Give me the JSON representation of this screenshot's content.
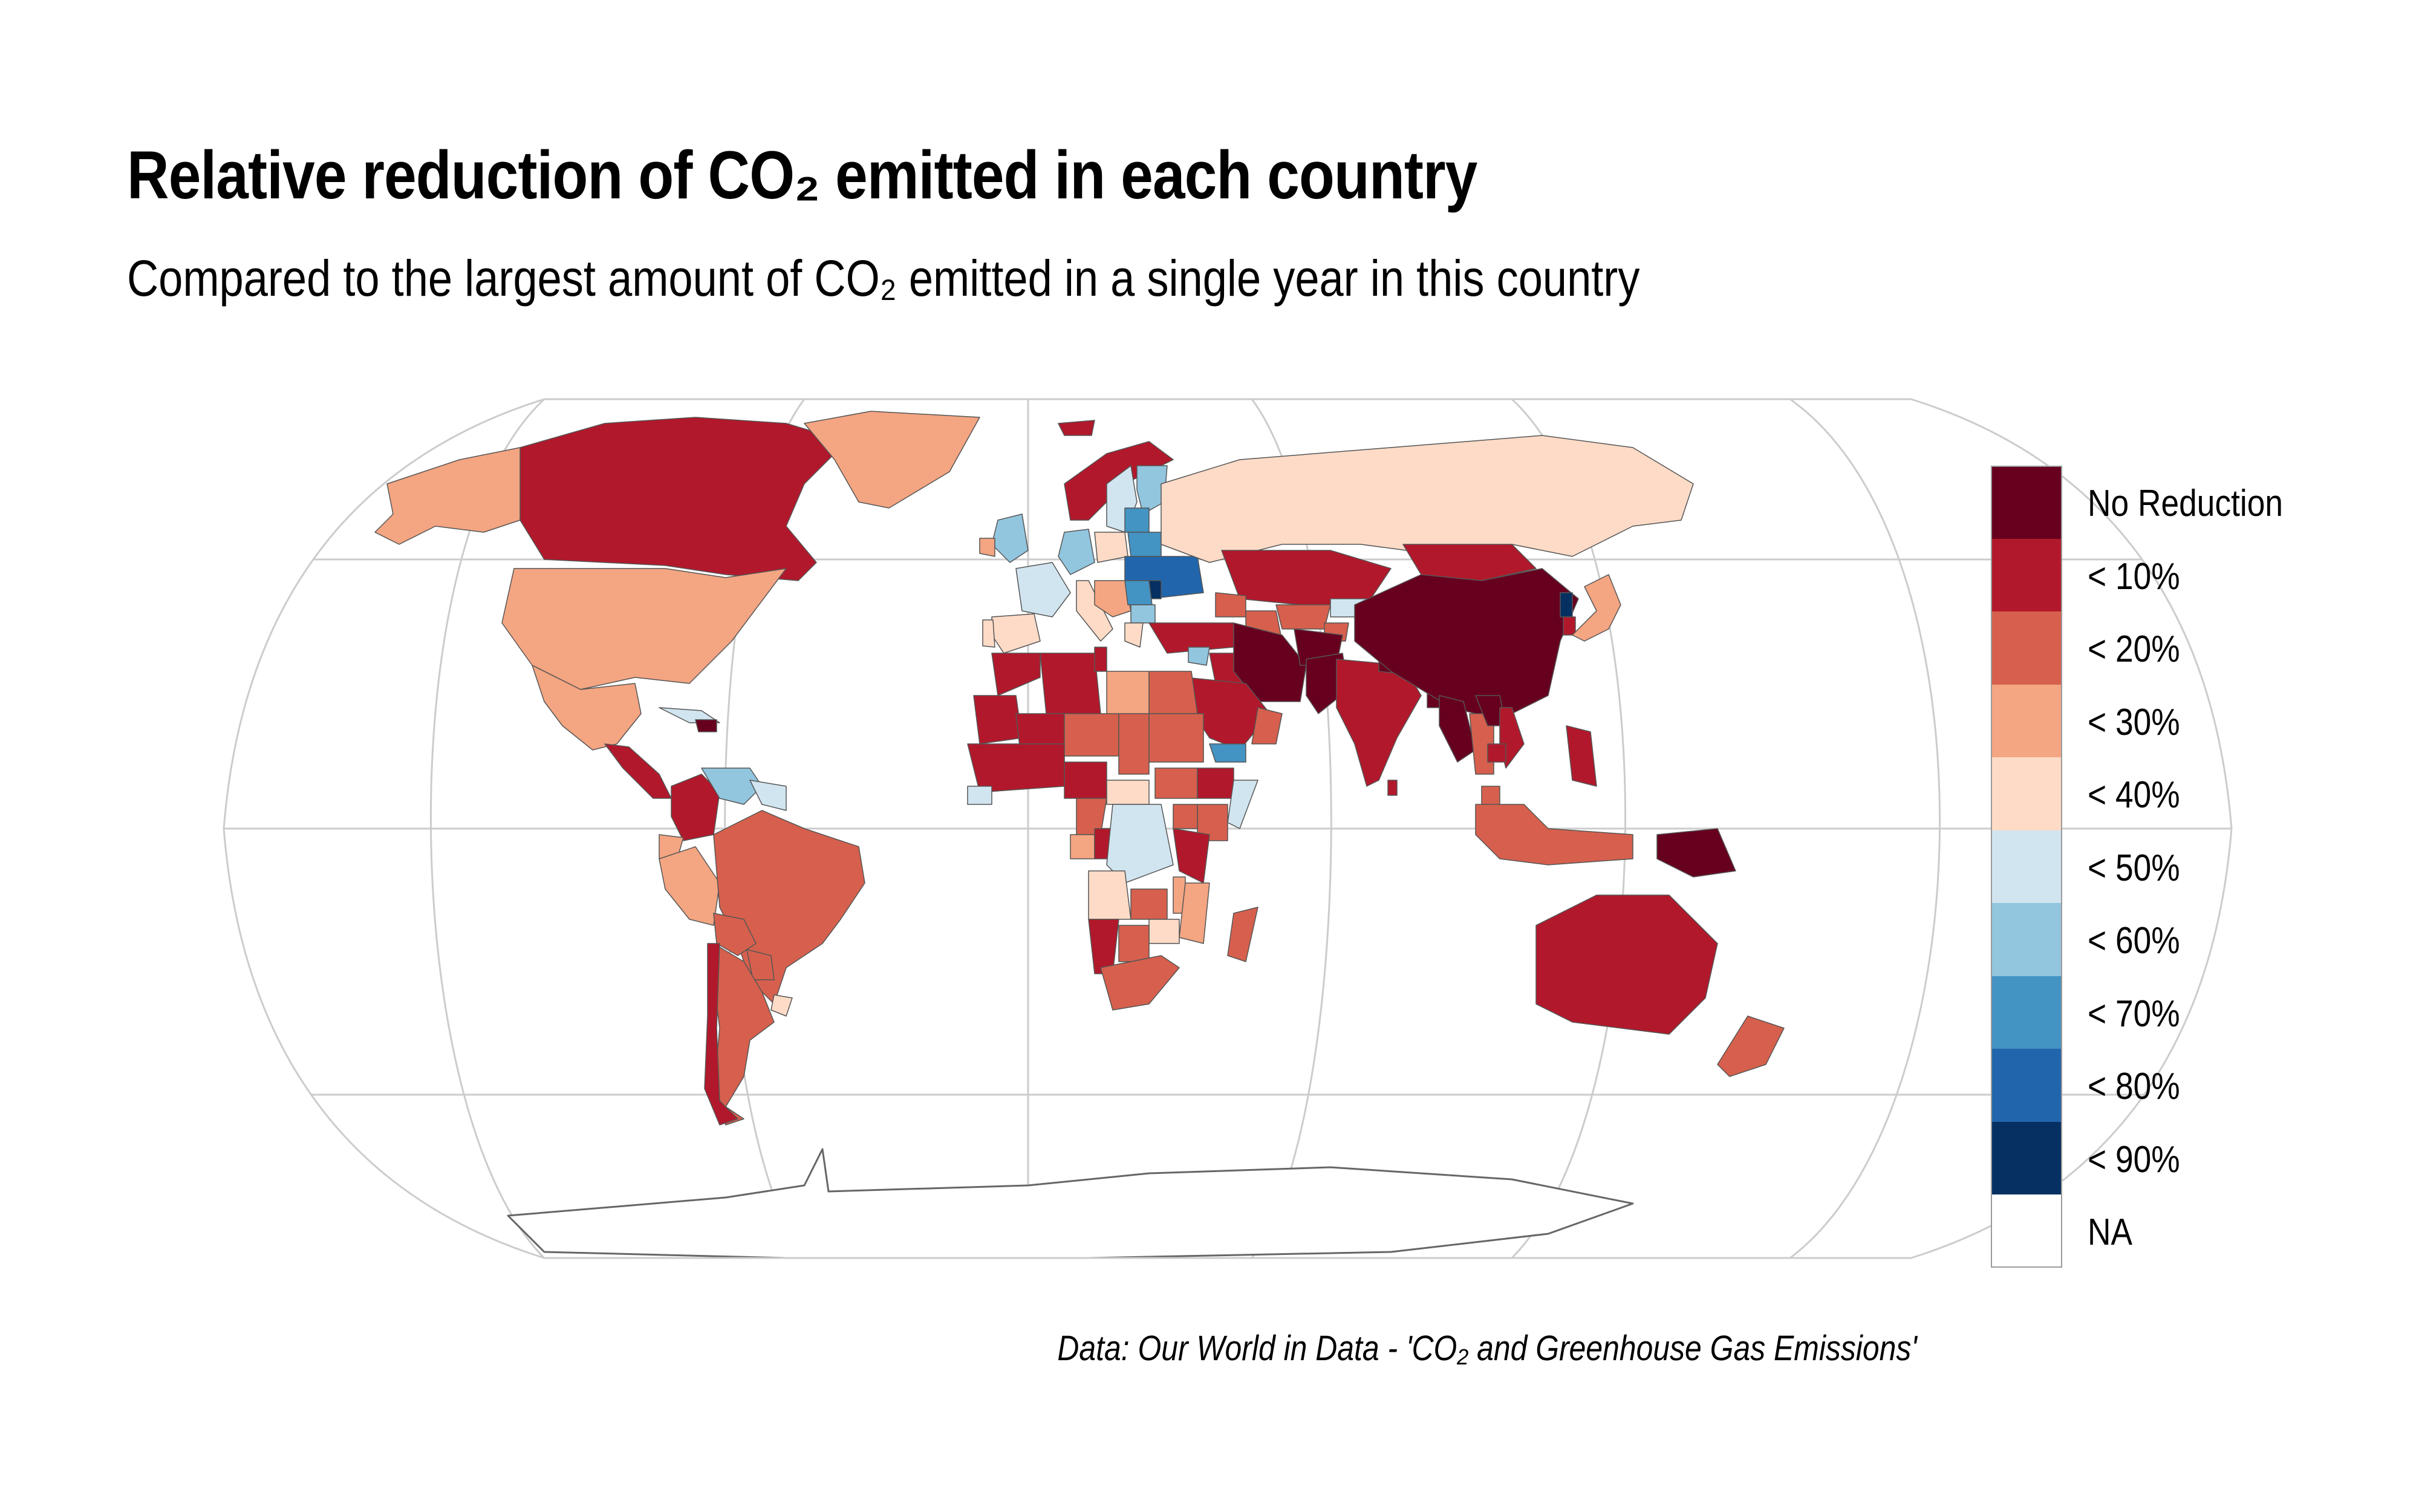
{
  "title": "Relative reduction of CO₂ emitted in each country",
  "subtitle": "Compared to the largest amount of CO₂ emitted in a single year in this country",
  "caption": "Data: Our World in Data - 'CO₂ and Greenhouse Gas Emissions'",
  "colors": {
    "graticule": "#cccccc",
    "border": "#555555",
    "antarctica_outline": "#666666",
    "background": "#ffffff"
  },
  "legend": {
    "placement": "right",
    "items": [
      {
        "label": "No Reduction",
        "color": "#67001f"
      },
      {
        "label": "< 10%",
        "color": "#b2182b"
      },
      {
        "label": "< 20%",
        "color": "#d6604d"
      },
      {
        "label": "< 30%",
        "color": "#f4a582"
      },
      {
        "label": "< 40%",
        "color": "#fddbc7"
      },
      {
        "label": "< 50%",
        "color": "#d1e5f0"
      },
      {
        "label": "< 60%",
        "color": "#92c5de"
      },
      {
        "label": "< 70%",
        "color": "#4393c3"
      },
      {
        "label": "< 80%",
        "color": "#2166ac"
      },
      {
        "label": "< 90%",
        "color": "#053061"
      },
      {
        "label": "NA",
        "color": "#ffffff"
      }
    ]
  },
  "map_data": {
    "projection": "Robinson",
    "graticule": true,
    "regions": [
      {
        "name": "Canada",
        "category": "< 10%"
      },
      {
        "name": "Alaska",
        "category": "< 30%"
      },
      {
        "name": "Greenland",
        "category": "< 30%"
      },
      {
        "name": "United States",
        "category": "< 30%"
      },
      {
        "name": "Mexico",
        "category": "< 30%"
      },
      {
        "name": "Central America",
        "category": "< 10%"
      },
      {
        "name": "Cuba",
        "category": "< 50%"
      },
      {
        "name": "Haiti",
        "category": "No Reduction"
      },
      {
        "name": "Colombia",
        "category": "< 10%"
      },
      {
        "name": "Venezuela",
        "category": "< 60%"
      },
      {
        "name": "Guianas",
        "category": "< 50%"
      },
      {
        "name": "Ecuador",
        "category": "< 30%"
      },
      {
        "name": "Peru",
        "category": "< 30%"
      },
      {
        "name": "Brazil",
        "category": "< 20%"
      },
      {
        "name": "Bolivia",
        "category": "< 20%"
      },
      {
        "name": "Paraguay",
        "category": "< 20%"
      },
      {
        "name": "Argentina",
        "category": "< 20%"
      },
      {
        "name": "Uruguay",
        "category": "< 40%"
      },
      {
        "name": "Chile",
        "category": "< 10%"
      },
      {
        "name": "Iceland",
        "category": "< 10%"
      },
      {
        "name": "Norway",
        "category": "< 10%"
      },
      {
        "name": "Sweden",
        "category": "< 50%"
      },
      {
        "name": "Finland",
        "category": "< 60%"
      },
      {
        "name": "United Kingdom",
        "category": "< 60%"
      },
      {
        "name": "Ireland",
        "category": "< 30%"
      },
      {
        "name": "France",
        "category": "< 50%"
      },
      {
        "name": "Spain",
        "category": "< 40%"
      },
      {
        "name": "Portugal",
        "category": "< 40%"
      },
      {
        "name": "Germany",
        "category": "< 60%"
      },
      {
        "name": "Poland",
        "category": "< 40%"
      },
      {
        "name": "Baltic States",
        "category": "< 70%"
      },
      {
        "name": "Belarus",
        "category": "< 70%"
      },
      {
        "name": "Ukraine",
        "category": "< 80%"
      },
      {
        "name": "Moldova",
        "category": "< 90%"
      },
      {
        "name": "Italy",
        "category": "< 40%"
      },
      {
        "name": "Balkans",
        "category": "< 30%"
      },
      {
        "name": "Romania",
        "category": "< 70%"
      },
      {
        "name": "Bulgaria",
        "category": "< 60%"
      },
      {
        "name": "Greece",
        "category": "< 40%"
      },
      {
        "name": "Turkey",
        "category": "< 10%"
      },
      {
        "name": "Russia",
        "category": "< 40%"
      },
      {
        "name": "Kazakhstan",
        "category": "< 10%"
      },
      {
        "name": "Uzbekistan",
        "category": "< 20%"
      },
      {
        "name": "Turkmenistan",
        "category": "< 20%"
      },
      {
        "name": "Kyrgyzstan",
        "category": "< 50%"
      },
      {
        "name": "Tajikistan",
        "category": "< 20%"
      },
      {
        "name": "Caucasus",
        "category": "< 20%"
      },
      {
        "name": "Syria",
        "category": "< 60%"
      },
      {
        "name": "Iraq",
        "category": "< 10%"
      },
      {
        "name": "Iran",
        "category": "No Reduction"
      },
      {
        "name": "Afghanistan",
        "category": "No Reduction"
      },
      {
        "name": "Pakistan",
        "category": "No Reduction"
      },
      {
        "name": "Saudi Arabia",
        "category": "< 10%"
      },
      {
        "name": "Yemen",
        "category": "< 70%"
      },
      {
        "name": "Oman",
        "category": "< 20%"
      },
      {
        "name": "India",
        "category": "< 10%"
      },
      {
        "name": "Nepal",
        "category": "No Reduction"
      },
      {
        "name": "Bangladesh",
        "category": "No Reduction"
      },
      {
        "name": "Sri Lanka",
        "category": "< 10%"
      },
      {
        "name": "China",
        "category": "No Reduction"
      },
      {
        "name": "Mongolia",
        "category": "< 10%"
      },
      {
        "name": "North Korea",
        "category": "< 90%"
      },
      {
        "name": "South Korea",
        "category": "< 10%"
      },
      {
        "name": "Japan",
        "category": "< 30%"
      },
      {
        "name": "Myanmar",
        "category": "No Reduction"
      },
      {
        "name": "Thailand",
        "category": "< 20%"
      },
      {
        "name": "Laos",
        "category": "No Reduction"
      },
      {
        "name": "Vietnam",
        "category": "< 10%"
      },
      {
        "name": "Cambodia",
        "category": "< 10%"
      },
      {
        "name": "Malaysia",
        "category": "< 20%"
      },
      {
        "name": "Philippines",
        "category": "< 10%"
      },
      {
        "name": "Indonesia",
        "category": "< 20%"
      },
      {
        "name": "Papua New Guinea",
        "category": "No Reduction"
      },
      {
        "name": "Australia",
        "category": "< 10%"
      },
      {
        "name": "New Zealand",
        "category": "< 20%"
      },
      {
        "name": "Morocco",
        "category": "< 10%"
      },
      {
        "name": "Algeria",
        "category": "< 10%"
      },
      {
        "name": "Tunisia",
        "category": "< 10%"
      },
      {
        "name": "Libya",
        "category": "< 30%"
      },
      {
        "name": "Egypt",
        "category": "< 20%"
      },
      {
        "name": "Mauritania",
        "category": "< 10%"
      },
      {
        "name": "Mali",
        "category": "< 10%"
      },
      {
        "name": "Niger",
        "category": "< 20%"
      },
      {
        "name": "Chad",
        "category": "< 20%"
      },
      {
        "name": "Sudan",
        "category": "< 20%"
      },
      {
        "name": "South Sudan",
        "category": "< 20%"
      },
      {
        "name": "Ethiopia",
        "category": "< 10%"
      },
      {
        "name": "Somalia",
        "category": "< 50%"
      },
      {
        "name": "Kenya",
        "category": "< 20%"
      },
      {
        "name": "Nigeria",
        "category": "< 10%"
      },
      {
        "name": "West Africa",
        "category": "< 10%"
      },
      {
        "name": "Liberia",
        "category": "< 50%"
      },
      {
        "name": "Cameroon",
        "category": "< 20%"
      },
      {
        "name": "Central African Republic",
        "category": "< 40%"
      },
      {
        "name": "Gabon",
        "category": "< 30%"
      },
      {
        "name": "Congo",
        "category": "< 10%"
      },
      {
        "name": "DR Congo",
        "category": "< 50%"
      },
      {
        "name": "Uganda",
        "category": "< 20%"
      },
      {
        "name": "Tanzania",
        "category": "< 10%"
      },
      {
        "name": "Angola",
        "category": "< 40%"
      },
      {
        "name": "Zambia",
        "category": "< 20%"
      },
      {
        "name": "Malawi",
        "category": "< 30%"
      },
      {
        "name": "Mozambique",
        "category": "< 30%"
      },
      {
        "name": "Zimbabwe",
        "category": "< 40%"
      },
      {
        "name": "Namibia",
        "category": "< 10%"
      },
      {
        "name": "Botswana",
        "category": "< 20%"
      },
      {
        "name": "South Africa",
        "category": "< 20%"
      },
      {
        "name": "Madagascar",
        "category": "< 20%"
      },
      {
        "name": "Antarctica",
        "category": "NA"
      }
    ]
  }
}
